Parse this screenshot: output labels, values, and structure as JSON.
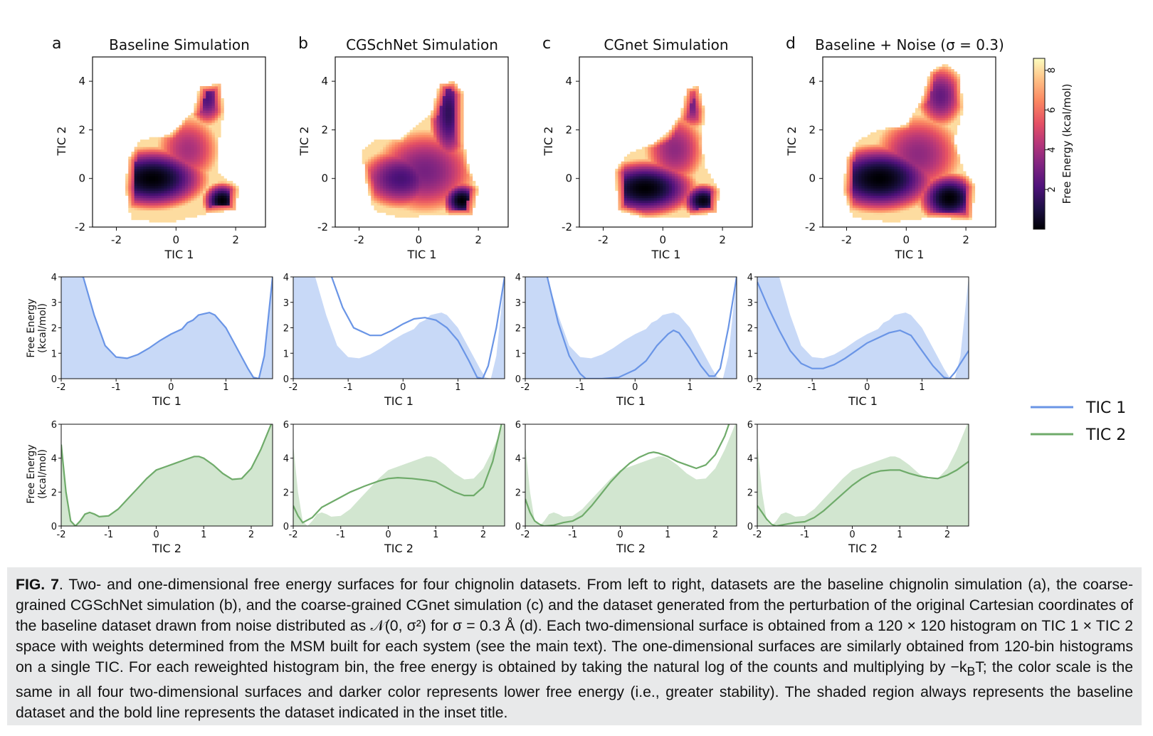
{
  "figure": {
    "panel_letters": [
      "a",
      "b",
      "c",
      "d"
    ],
    "panel_titles": [
      "Baseline Simulation",
      "CGSchNet Simulation",
      "CGnet Simulation",
      "Baseline + Noise (σ = 0.3)"
    ],
    "colorbar": {
      "label": "Free Energy (kcal/mol)",
      "ticks": [
        "2",
        "4",
        "6",
        "8"
      ],
      "colormap": "magma",
      "range": [
        0,
        8.6
      ]
    },
    "legend": {
      "placement": "right",
      "items": [
        {
          "label": "TIC 1",
          "color": "#6a95e6"
        },
        {
          "label": "TIC 2",
          "color": "#6fab6a"
        }
      ]
    },
    "colors": {
      "tic1_line": "#6a95e6",
      "tic1_fill": "#c8d9f7",
      "tic2_line": "#6fab6a",
      "tic2_fill": "#d2e6d0"
    }
  },
  "chart_data": [
    {
      "type": "heatmap",
      "panel": "a",
      "title": "Baseline Simulation",
      "xlabel": "TIC 1",
      "ylabel": "TIC 2",
      "xlim": [
        -2.8,
        3.0
      ],
      "ylim": [
        -2.0,
        5.0
      ],
      "xticks": [
        "-2",
        "0",
        "2"
      ],
      "yticks": [
        "-2",
        "0",
        "2",
        "4"
      ],
      "basins": [
        {
          "x": -0.8,
          "y": 0.0,
          "depth": 0.0,
          "sx": 0.8,
          "sy": 0.55
        },
        {
          "x": 1.55,
          "y": -0.9,
          "depth": 0.0,
          "sx": 0.28,
          "sy": 0.32
        },
        {
          "x": 1.05,
          "y": 3.3,
          "depth": 2.2,
          "sx": 0.3,
          "sy": 0.55
        },
        {
          "x": 0.4,
          "y": 1.2,
          "depth": 4.0,
          "sx": 0.6,
          "sy": 0.8
        }
      ],
      "region_polygon": [
        [
          -1.5,
          -1.7
        ],
        [
          -0.2,
          -1.8
        ],
        [
          1.2,
          -1.4
        ],
        [
          2.0,
          -1.3
        ],
        [
          2.1,
          -0.3
        ],
        [
          1.4,
          0.2
        ],
        [
          1.4,
          1.3
        ],
        [
          1.6,
          2.8
        ],
        [
          1.5,
          3.9
        ],
        [
          0.8,
          3.8
        ],
        [
          0.6,
          2.8
        ],
        [
          -0.2,
          1.8
        ],
        [
          -1.2,
          1.6
        ],
        [
          -1.4,
          1.2
        ],
        [
          -1.6,
          0.8
        ],
        [
          -1.7,
          -0.4
        ]
      ]
    },
    {
      "type": "heatmap",
      "panel": "b",
      "title": "CGSchNet Simulation",
      "xlabel": "TIC 1",
      "ylabel": "TIC 2",
      "xlim": [
        -2.8,
        3.0
      ],
      "ylim": [
        -2.0,
        5.0
      ],
      "xticks": [
        "-2",
        "0",
        "2"
      ],
      "yticks": [
        "-2",
        "0",
        "2",
        "4"
      ],
      "basins": [
        {
          "x": -0.6,
          "y": 0.0,
          "depth": 2.0,
          "sx": 0.7,
          "sy": 0.6
        },
        {
          "x": 1.45,
          "y": -0.9,
          "depth": 0.0,
          "sx": 0.28,
          "sy": 0.32
        },
        {
          "x": 1.0,
          "y": 2.7,
          "depth": 1.5,
          "sx": 0.3,
          "sy": 1.0
        },
        {
          "x": 0.2,
          "y": 0.3,
          "depth": 3.0,
          "sx": 0.9,
          "sy": 0.9
        }
      ],
      "region_polygon": [
        [
          -1.5,
          -1.3
        ],
        [
          -0.6,
          -1.6
        ],
        [
          0.6,
          -1.5
        ],
        [
          1.8,
          -1.5
        ],
        [
          2.0,
          -0.4
        ],
        [
          1.7,
          0.3
        ],
        [
          1.5,
          1.5
        ],
        [
          1.5,
          3.5
        ],
        [
          1.2,
          4.0
        ],
        [
          0.7,
          3.9
        ],
        [
          0.4,
          2.6
        ],
        [
          -0.6,
          1.6
        ],
        [
          -1.4,
          1.6
        ],
        [
          -1.9,
          1.2
        ],
        [
          -1.8,
          0.0
        ]
      ]
    },
    {
      "type": "heatmap",
      "panel": "c",
      "title": "CGnet Simulation",
      "xlabel": "TIC 1",
      "ylabel": "TIC 2",
      "xlim": [
        -2.8,
        3.0
      ],
      "ylim": [
        -2.0,
        5.0
      ],
      "xticks": [
        "-2",
        "0",
        "2"
      ],
      "yticks": [
        "-2",
        "0",
        "2",
        "4"
      ],
      "basins": [
        {
          "x": -0.6,
          "y": -0.4,
          "depth": 0.0,
          "sx": 0.75,
          "sy": 0.5
        },
        {
          "x": 1.35,
          "y": -0.9,
          "depth": 0.2,
          "sx": 0.3,
          "sy": 0.3
        },
        {
          "x": 1.0,
          "y": 3.0,
          "depth": 3.0,
          "sx": 0.28,
          "sy": 0.5
        },
        {
          "x": 0.4,
          "y": 1.2,
          "depth": 3.5,
          "sx": 0.55,
          "sy": 0.8
        }
      ],
      "region_polygon": [
        [
          -1.5,
          -1.3
        ],
        [
          -0.6,
          -1.6
        ],
        [
          0.6,
          -1.6
        ],
        [
          1.8,
          -1.4
        ],
        [
          1.9,
          -0.5
        ],
        [
          1.4,
          0.5
        ],
        [
          1.3,
          1.5
        ],
        [
          1.4,
          2.8
        ],
        [
          1.2,
          3.8
        ],
        [
          0.8,
          3.7
        ],
        [
          0.6,
          2.6
        ],
        [
          0.1,
          1.8
        ],
        [
          -0.4,
          1.4
        ],
        [
          -1.2,
          1.0
        ],
        [
          -1.6,
          0.3
        ]
      ]
    },
    {
      "type": "heatmap",
      "panel": "d",
      "title": "Baseline + Noise (σ = 0.3)",
      "xlabel": "TIC 1",
      "ylabel": "TIC 2",
      "xlim": [
        -2.8,
        3.0
      ],
      "ylim": [
        -2.0,
        5.0
      ],
      "xticks": [
        "-2",
        "0",
        "2"
      ],
      "yticks": [
        "-2",
        "0",
        "2",
        "4"
      ],
      "basins": [
        {
          "x": -0.9,
          "y": 0.0,
          "depth": 0.0,
          "sx": 0.85,
          "sy": 0.6
        },
        {
          "x": 1.45,
          "y": -0.8,
          "depth": 0.0,
          "sx": 0.45,
          "sy": 0.45
        },
        {
          "x": 1.15,
          "y": 3.4,
          "depth": 2.6,
          "sx": 0.4,
          "sy": 0.65
        },
        {
          "x": 0.4,
          "y": 1.0,
          "depth": 3.5,
          "sx": 0.8,
          "sy": 0.9
        }
      ],
      "region_polygon": [
        [
          -1.8,
          -1.6
        ],
        [
          -0.5,
          -1.8
        ],
        [
          0.8,
          -1.6
        ],
        [
          2.2,
          -1.7
        ],
        [
          2.3,
          -0.3
        ],
        [
          1.9,
          0.4
        ],
        [
          1.6,
          1.6
        ],
        [
          1.9,
          2.8
        ],
        [
          1.8,
          4.3
        ],
        [
          1.3,
          4.7
        ],
        [
          0.8,
          4.4
        ],
        [
          0.5,
          3.2
        ],
        [
          0.0,
          2.2
        ],
        [
          -0.9,
          2.0
        ],
        [
          -1.6,
          1.6
        ],
        [
          -2.0,
          0.8
        ],
        [
          -2.1,
          -0.5
        ]
      ]
    },
    {
      "type": "area",
      "row": "TIC 1",
      "ylabel": "Free Energy (kcal/mol)",
      "xlabel": "TIC 1",
      "xlim": [
        -2,
        1.85
      ],
      "ylim": [
        0,
        4
      ],
      "xticks": [
        "-2",
        "-1",
        "0",
        "1"
      ],
      "yticks": [
        "0",
        "1",
        "2",
        "3",
        "4"
      ],
      "baseline": {
        "x": [
          -2.0,
          -1.6,
          -1.4,
          -1.2,
          -1.0,
          -0.8,
          -0.6,
          -0.4,
          -0.2,
          0.0,
          0.2,
          0.3,
          0.4,
          0.5,
          0.6,
          0.7,
          0.8,
          1.0,
          1.2,
          1.4,
          1.5,
          1.6,
          1.7,
          1.85
        ],
        "y": [
          5.0,
          4.0,
          2.5,
          1.3,
          0.85,
          0.8,
          0.95,
          1.2,
          1.5,
          1.75,
          1.95,
          2.2,
          2.3,
          2.5,
          2.55,
          2.6,
          2.5,
          2.0,
          1.2,
          0.4,
          0.05,
          0.0,
          0.9,
          4.0
        ]
      },
      "series": [
        {
          "panel": "a",
          "x": [
            -2.0,
            -1.6,
            -1.4,
            -1.2,
            -1.0,
            -0.8,
            -0.6,
            -0.4,
            -0.2,
            0.0,
            0.2,
            0.3,
            0.4,
            0.5,
            0.6,
            0.7,
            0.8,
            1.0,
            1.2,
            1.4,
            1.5,
            1.6,
            1.7,
            1.85
          ],
          "y": [
            5.0,
            4.0,
            2.5,
            1.3,
            0.85,
            0.8,
            0.95,
            1.2,
            1.5,
            1.75,
            1.95,
            2.2,
            2.3,
            2.5,
            2.55,
            2.6,
            2.5,
            2.0,
            1.2,
            0.4,
            0.05,
            0.0,
            0.9,
            4.0
          ]
        },
        {
          "panel": "b",
          "x": [
            -1.3,
            -1.1,
            -0.9,
            -0.6,
            -0.4,
            -0.2,
            0.0,
            0.2,
            0.4,
            0.6,
            0.8,
            1.0,
            1.2,
            1.35,
            1.45,
            1.55,
            1.7,
            1.85
          ],
          "y": [
            4.0,
            2.8,
            2.0,
            1.7,
            1.7,
            1.9,
            2.15,
            2.35,
            2.4,
            2.3,
            2.0,
            1.5,
            0.7,
            0.05,
            0.0,
            0.5,
            2.0,
            4.0
          ]
        },
        {
          "panel": "c",
          "x": [
            -1.6,
            -1.4,
            -1.2,
            -1.0,
            -0.9,
            -0.6,
            -0.3,
            0.0,
            0.2,
            0.4,
            0.6,
            0.7,
            0.8,
            1.0,
            1.2,
            1.35,
            1.45,
            1.55,
            1.7,
            1.85
          ],
          "y": [
            4.0,
            2.2,
            0.9,
            0.2,
            0.0,
            0.0,
            0.05,
            0.35,
            0.7,
            1.3,
            1.75,
            1.9,
            1.8,
            1.2,
            0.5,
            0.1,
            0.1,
            0.4,
            2.0,
            4.0
          ]
        },
        {
          "panel": "d",
          "x": [
            -2.0,
            -1.8,
            -1.6,
            -1.4,
            -1.2,
            -1.0,
            -0.8,
            -0.6,
            -0.4,
            -0.2,
            0.0,
            0.2,
            0.4,
            0.6,
            0.8,
            1.0,
            1.2,
            1.4,
            1.5,
            1.6,
            1.7,
            1.85
          ],
          "y": [
            3.8,
            2.8,
            1.9,
            1.1,
            0.6,
            0.4,
            0.4,
            0.55,
            0.8,
            1.1,
            1.4,
            1.6,
            1.8,
            1.9,
            1.7,
            1.1,
            0.5,
            0.05,
            0.0,
            0.25,
            0.6,
            1.1
          ]
        }
      ]
    },
    {
      "type": "area",
      "row": "TIC 2",
      "ylabel": "Free Energy (kcal/mol)",
      "xlabel": "TIC 2",
      "xlim": [
        -2,
        2.45
      ],
      "ylim": [
        0,
        6
      ],
      "xticks": [
        "-2",
        "-1",
        "0",
        "1",
        "2"
      ],
      "yticks": [
        "0",
        "2",
        "4",
        "6"
      ],
      "baseline": {
        "x": [
          -2.0,
          -1.9,
          -1.8,
          -1.7,
          -1.6,
          -1.5,
          -1.4,
          -1.3,
          -1.2,
          -1.0,
          -0.8,
          -0.6,
          -0.4,
          -0.2,
          0.0,
          0.2,
          0.4,
          0.6,
          0.8,
          0.9,
          1.0,
          1.2,
          1.4,
          1.6,
          1.8,
          2.0,
          2.2,
          2.45
        ],
        "y": [
          4.8,
          2.0,
          0.3,
          0.0,
          0.3,
          0.7,
          0.8,
          0.7,
          0.55,
          0.6,
          1.0,
          1.6,
          2.2,
          2.8,
          3.3,
          3.5,
          3.7,
          3.9,
          4.1,
          4.1,
          4.0,
          3.6,
          3.1,
          2.75,
          2.8,
          3.4,
          4.5,
          6.2
        ]
      },
      "series": [
        {
          "panel": "a",
          "x": [
            -2.0,
            -1.9,
            -1.8,
            -1.7,
            -1.6,
            -1.5,
            -1.4,
            -1.3,
            -1.2,
            -1.0,
            -0.8,
            -0.6,
            -0.4,
            -0.2,
            0.0,
            0.2,
            0.4,
            0.6,
            0.8,
            0.9,
            1.0,
            1.2,
            1.4,
            1.6,
            1.8,
            2.0,
            2.2,
            2.45
          ],
          "y": [
            4.8,
            2.0,
            0.3,
            0.0,
            0.3,
            0.7,
            0.8,
            0.7,
            0.55,
            0.6,
            1.0,
            1.6,
            2.2,
            2.8,
            3.3,
            3.5,
            3.7,
            3.9,
            4.1,
            4.1,
            4.0,
            3.6,
            3.1,
            2.75,
            2.8,
            3.4,
            4.5,
            6.2
          ]
        },
        {
          "panel": "b",
          "x": [
            -2.0,
            -1.9,
            -1.8,
            -1.6,
            -1.4,
            -1.2,
            -1.0,
            -0.8,
            -0.5,
            -0.2,
            0.0,
            0.2,
            0.5,
            0.8,
            1.0,
            1.2,
            1.4,
            1.6,
            1.8,
            2.0,
            2.2,
            2.4
          ],
          "y": [
            1.2,
            0.6,
            0.2,
            0.5,
            1.1,
            1.4,
            1.7,
            2.0,
            2.35,
            2.65,
            2.8,
            2.85,
            2.8,
            2.7,
            2.6,
            2.3,
            2.0,
            1.8,
            1.8,
            2.3,
            3.8,
            6.2
          ]
        },
        {
          "panel": "c",
          "x": [
            -2.0,
            -1.9,
            -1.8,
            -1.7,
            -1.6,
            -1.4,
            -1.2,
            -1.0,
            -0.8,
            -0.6,
            -0.4,
            -0.2,
            0.0,
            0.2,
            0.4,
            0.6,
            0.7,
            0.8,
            1.0,
            1.2,
            1.4,
            1.6,
            1.8,
            2.0,
            2.2,
            2.3
          ],
          "y": [
            1.6,
            0.8,
            0.3,
            0.1,
            0.0,
            0.05,
            0.2,
            0.3,
            0.6,
            1.2,
            1.9,
            2.6,
            3.2,
            3.7,
            4.05,
            4.3,
            4.35,
            4.3,
            4.1,
            3.8,
            3.6,
            3.4,
            3.6,
            4.2,
            5.3,
            6.1
          ]
        },
        {
          "panel": "d",
          "x": [
            -2.0,
            -1.9,
            -1.8,
            -1.7,
            -1.6,
            -1.4,
            -1.2,
            -1.0,
            -0.8,
            -0.6,
            -0.4,
            -0.2,
            0.0,
            0.2,
            0.4,
            0.6,
            0.8,
            1.0,
            1.2,
            1.4,
            1.6,
            1.8,
            2.0,
            2.2,
            2.45
          ],
          "y": [
            1.2,
            0.8,
            0.4,
            0.1,
            0.0,
            0.1,
            0.2,
            0.25,
            0.5,
            0.9,
            1.4,
            1.9,
            2.4,
            2.8,
            3.1,
            3.25,
            3.3,
            3.3,
            3.1,
            2.95,
            2.85,
            2.8,
            3.0,
            3.3,
            3.8
          ]
        }
      ]
    }
  ],
  "caption": {
    "fig_label": "FIG. 7",
    "lines": [
      ". Two- and one-dimensional free energy surfaces for four chignolin datasets. From left to right, datasets are the baseline chignolin simulation (a), the coarse-grained CGSchNet simulation (b), and the coarse-grained CGnet simulation (c) and the dataset generated from the perturbation of the original Cartesian coordinates of the baseline dataset drawn from noise distributed as 𝒩(0, σ²) for σ = 0.3 Å (d). Each two-dimensional surface is obtained from a 120 × 120 histogram on TIC 1 × TIC 2 space with weights determined from the MSM built for each system (see the main text). The one-dimensional surfaces are similarly obtained from 120-bin histograms on a single TIC. For each reweighted histogram bin, the free energy is obtained by taking the natural log of the counts and multiplying by −k",
      "T; the color scale is the same in all four two-dimensional surfaces and darker color represents lower free energy (i.e., greater stability). The shaded region always represents the baseline dataset and the bold line represents the dataset indicated in the inset title."
    ],
    "kb_symbol": "B"
  }
}
